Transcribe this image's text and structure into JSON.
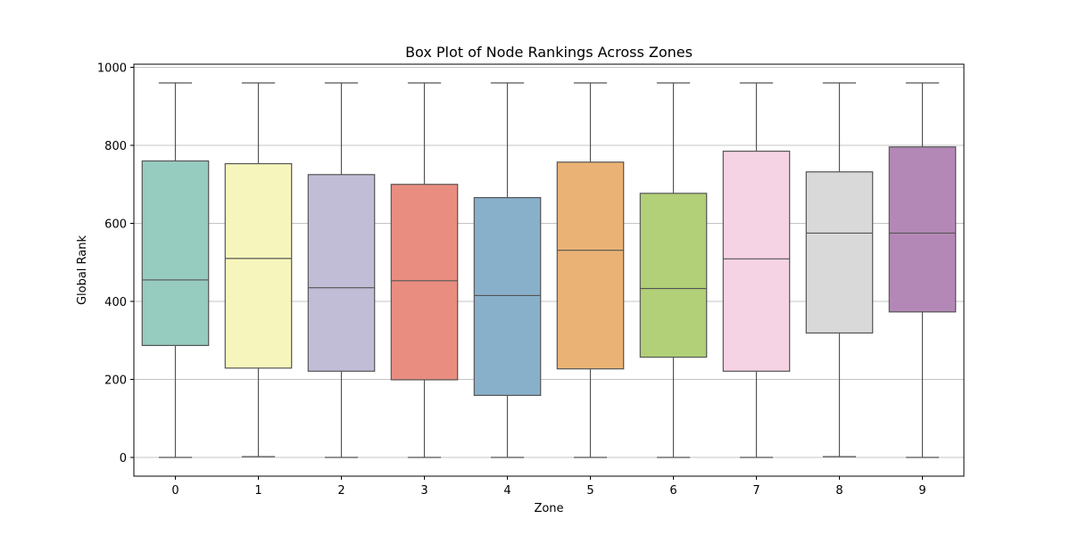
{
  "chart_data": {
    "type": "box",
    "title": "Box Plot of Node Rankings Across Zones",
    "xlabel": "Zone",
    "ylabel": "Global Rank",
    "ylim": [
      -48,
      1008
    ],
    "yticks": [
      0,
      200,
      400,
      600,
      800,
      1000
    ],
    "grid": true,
    "categories": [
      "0",
      "1",
      "2",
      "3",
      "4",
      "5",
      "6",
      "7",
      "8",
      "9"
    ],
    "boxes": [
      {
        "whisker_low": 0,
        "q1": 287,
        "median": 455,
        "q3": 760,
        "whisker_high": 960,
        "color": "#96cbc0"
      },
      {
        "whisker_low": 2,
        "q1": 229,
        "median": 510,
        "q3": 753,
        "whisker_high": 960,
        "color": "#f6f6bc"
      },
      {
        "whisker_low": 0,
        "q1": 221,
        "median": 435,
        "q3": 725,
        "whisker_high": 960,
        "color": "#c1bdd6"
      },
      {
        "whisker_low": 0,
        "q1": 199,
        "median": 453,
        "q3": 700,
        "whisker_high": 960,
        "color": "#e98d81"
      },
      {
        "whisker_low": 0,
        "q1": 159,
        "median": 415,
        "q3": 666,
        "whisker_high": 960,
        "color": "#89b0cb"
      },
      {
        "whisker_low": 0,
        "q1": 227,
        "median": 531,
        "q3": 757,
        "whisker_high": 960,
        "color": "#eab375"
      },
      {
        "whisker_low": 0,
        "q1": 257,
        "median": 433,
        "q3": 677,
        "whisker_high": 960,
        "color": "#b1d077"
      },
      {
        "whisker_low": 0,
        "q1": 221,
        "median": 509,
        "q3": 785,
        "whisker_high": 960,
        "color": "#f5d3e4"
      },
      {
        "whisker_low": 2,
        "q1": 319,
        "median": 575,
        "q3": 732,
        "whisker_high": 960,
        "color": "#d9d9d9"
      },
      {
        "whisker_low": 0,
        "q1": 373,
        "median": 575,
        "q3": 796,
        "whisker_high": 960,
        "color": "#b488b6"
      }
    ]
  }
}
